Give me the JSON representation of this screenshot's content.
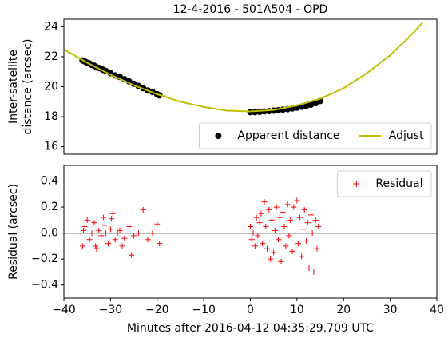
{
  "chart_data": [
    {
      "type": "scatter",
      "title": "12-4-2016 - 501A504 - OPD",
      "ylabel": [
        "Inter-satellite",
        "distance (arcsec)"
      ],
      "xlim": [
        -40,
        40
      ],
      "ylim": [
        15.5,
        24.5
      ],
      "yticks": [
        16,
        18,
        20,
        22,
        24
      ],
      "legend": "lower right",
      "series": [
        {
          "name": "Apparent distance",
          "type": "scatter",
          "marker": "o",
          "color": "#000000",
          "x": [
            -36,
            -35.5,
            -35,
            -34.5,
            -34,
            -33.5,
            -33,
            -32.5,
            -32,
            -31.5,
            -31,
            -30,
            -29,
            -28,
            -27,
            -26,
            -25,
            -24,
            -23,
            -22,
            -21,
            -20,
            -19.5,
            0,
            1,
            2,
            3,
            4,
            5,
            6,
            7,
            8,
            9,
            10,
            11,
            12,
            13,
            14,
            15
          ],
          "values": [
            21.75,
            21.68,
            21.6,
            21.55,
            21.45,
            21.4,
            21.3,
            21.25,
            21.2,
            21.12,
            21.05,
            20.9,
            20.75,
            20.65,
            20.5,
            20.35,
            20.2,
            20.05,
            19.9,
            19.75,
            19.65,
            19.5,
            19.42,
            18.3,
            18.3,
            18.32,
            18.35,
            18.37,
            18.4,
            18.43,
            18.47,
            18.5,
            18.55,
            18.6,
            18.66,
            18.72,
            18.8,
            18.9,
            19.05
          ]
        },
        {
          "name": "Adjust",
          "type": "line",
          "color": "#bfbf00",
          "x": [
            -40,
            -35,
            -30,
            -25,
            -20,
            -15,
            -10,
            -5,
            0,
            5,
            10,
            15,
            20,
            25,
            30,
            35,
            37
          ],
          "values": [
            22.5,
            21.6,
            20.8,
            20.1,
            19.5,
            19.0,
            18.65,
            18.4,
            18.35,
            18.45,
            18.75,
            19.2,
            19.9,
            20.9,
            22.1,
            23.6,
            24.3
          ]
        }
      ]
    },
    {
      "type": "scatter",
      "ylabel": "Residual (arcsec)",
      "xlabel": "Minutes after 2016-04-12 04:35:29.709 UTC",
      "xlim": [
        -40,
        40
      ],
      "xticks": [
        {
          "value": -40,
          "label": "−40"
        },
        {
          "value": -30,
          "label": "−30"
        },
        {
          "value": -20,
          "label": "−20"
        },
        {
          "value": -10,
          "label": "−10"
        },
        0,
        10,
        20,
        30,
        40
      ],
      "ylim": [
        -0.5,
        0.52
      ],
      "yticks": [
        {
          "value": -0.4,
          "label": "−0.4"
        },
        {
          "value": -0.2,
          "label": "−0.2"
        },
        {
          "value": 0,
          "label": "0.0"
        },
        0.2,
        0.4
      ],
      "hline": 0,
      "legend": "upper right",
      "series": [
        {
          "name": "Residual",
          "type": "scatter",
          "marker": "+",
          "color": "#ff0000",
          "x": [
            -36,
            -35.5,
            -35,
            -34.5,
            -34,
            -33.5,
            -33,
            -32.5,
            -32,
            -31.5,
            -31,
            -30.5,
            -30,
            -29.5,
            -29,
            -28.5,
            -28,
            -27.5,
            -27,
            -26,
            -25.5,
            -25,
            -24,
            -23,
            -22,
            -21,
            -20,
            -19.5,
            -35.8,
            -33.2,
            -31.2,
            -29.8,
            0,
            0.3,
            0.6,
            1,
            1.3,
            1.6,
            2,
            2.3,
            2.6,
            3,
            3.3,
            3.6,
            4,
            4.3,
            4.6,
            5,
            5.3,
            5.6,
            6,
            6.3,
            6.6,
            7,
            7.3,
            7.6,
            8,
            8.3,
            8.6,
            9,
            9.3,
            9.6,
            10,
            10.3,
            10.6,
            11,
            11.3,
            11.6,
            12,
            12.3,
            12.6,
            13,
            13.3,
            13.6,
            14,
            14.3,
            14.6
          ],
          "values": [
            -0.1,
            0.05,
            0.1,
            -0.05,
            0.0,
            0.08,
            -0.12,
            0.02,
            -0.02,
            0.12,
            0.0,
            -0.08,
            0.03,
            0.15,
            -0.05,
            0.0,
            0.02,
            -0.1,
            -0.04,
            0.05,
            -0.17,
            -0.02,
            0.0,
            0.18,
            -0.05,
            0.0,
            0.07,
            -0.08,
            0.02,
            -0.1,
            0.06,
            0.11,
            0.05,
            -0.05,
            0.0,
            -0.1,
            0.12,
            -0.02,
            0.08,
            0.15,
            -0.08,
            0.24,
            0.05,
            -0.12,
            0.18,
            -0.2,
            0.1,
            -0.15,
            0.02,
            0.2,
            -0.05,
            0.12,
            -0.22,
            0.16,
            0.05,
            -0.1,
            0.22,
            -0.02,
            0.1,
            -0.14,
            0.2,
            0.0,
            0.25,
            -0.08,
            0.12,
            -0.18,
            0.03,
            0.18,
            -0.06,
            0.08,
            -0.27,
            0.14,
            0.0,
            -0.3,
            0.1,
            -0.12,
            0.05
          ]
        }
      ]
    }
  ]
}
